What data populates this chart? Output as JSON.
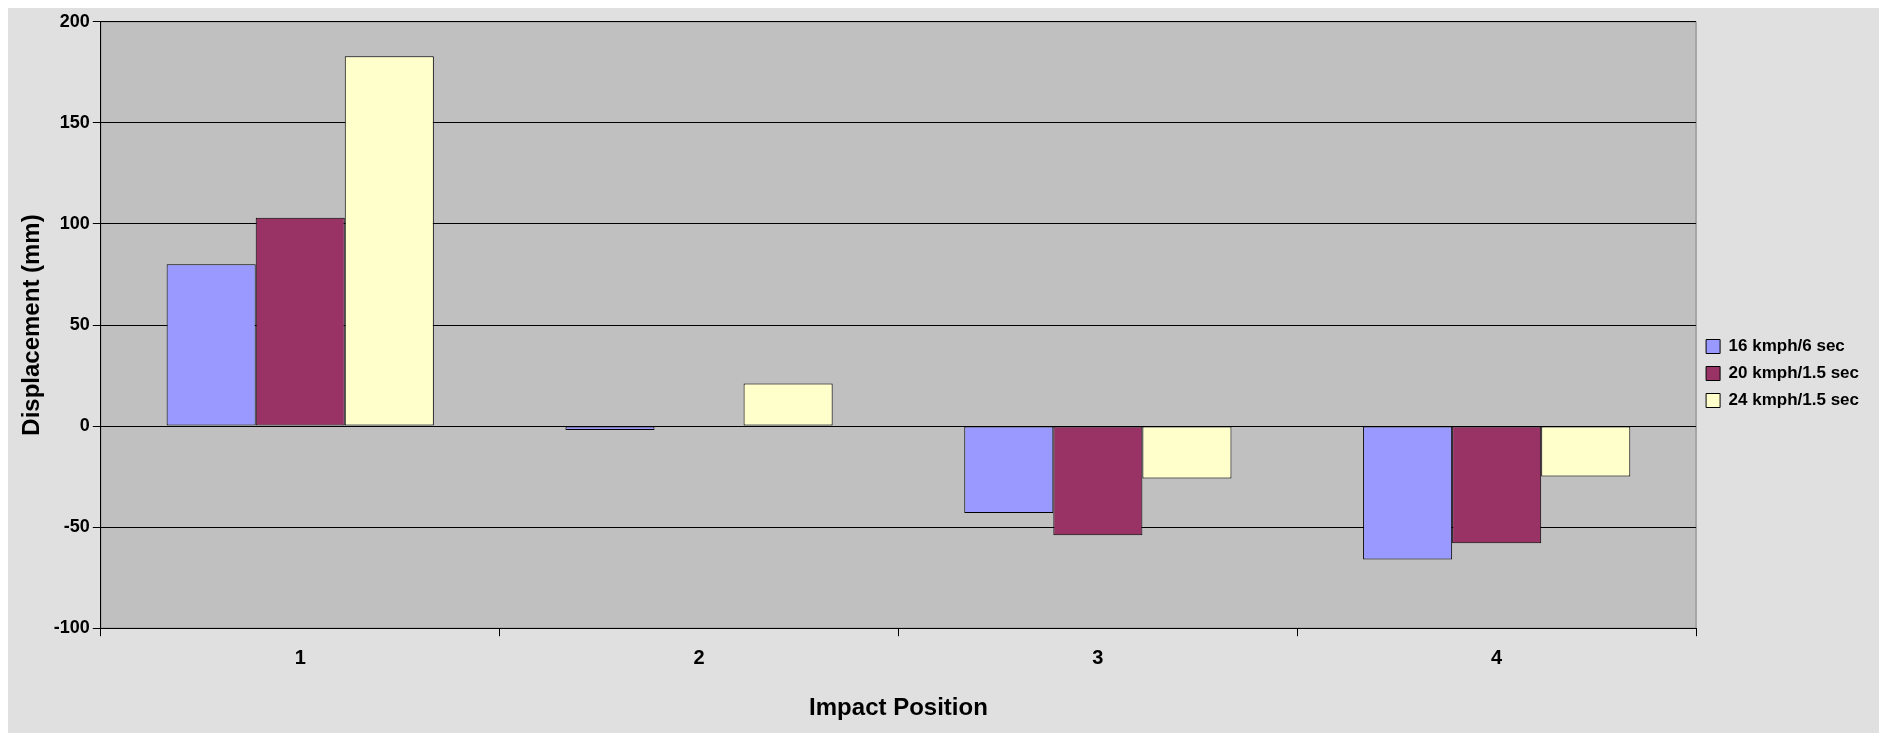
{
  "chart_data": {
    "type": "bar",
    "xlabel": "Impact Position",
    "ylabel": "Displacement (mm)",
    "categories": [
      "1",
      "2",
      "3",
      "4"
    ],
    "series": [
      {
        "name": "16 kmph/6 sec",
        "color": "#9999ff",
        "values": [
          80,
          -2,
          -43,
          -66
        ]
      },
      {
        "name": "20 kmph/1.5 sec",
        "color": "#993366",
        "values": [
          103,
          0,
          -54,
          -58
        ]
      },
      {
        "name": "24 kmph/1.5 sec",
        "color": "#ffffcc",
        "values": [
          183,
          21,
          -26,
          -25
        ]
      }
    ],
    "ylim": [
      -100,
      200
    ],
    "yticks": [
      -100,
      -50,
      0,
      50,
      100,
      150,
      200
    ],
    "grid": "y",
    "legend": "right"
  }
}
